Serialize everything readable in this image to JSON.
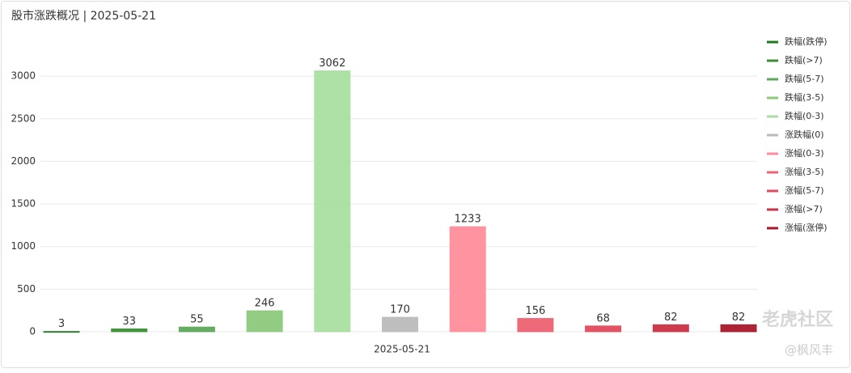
{
  "chart_data": {
    "type": "bar",
    "title": "股市涨跌概况 | 2025-05-21",
    "categories": [
      "2025-05-21"
    ],
    "series": [
      {
        "name": "跌幅(跌停)",
        "color": "#1f7a1f",
        "values": [
          3
        ]
      },
      {
        "name": "跌幅(>7)",
        "color": "#3a8f35",
        "values": [
          33
        ]
      },
      {
        "name": "跌幅(5-7)",
        "color": "#5ea85a",
        "values": [
          55
        ]
      },
      {
        "name": "跌幅(3-5)",
        "color": "#8cc97c",
        "values": [
          246
        ]
      },
      {
        "name": "跌幅(0-3)",
        "color": "#a9dfa0",
        "values": [
          3062
        ]
      },
      {
        "name": "涨跌幅(0)",
        "color": "#bbbbbb",
        "values": [
          170
        ]
      },
      {
        "name": "涨幅(0-3)",
        "color": "#ff8d9b",
        "values": [
          1233
        ]
      },
      {
        "name": "涨幅(3-5)",
        "color": "#ee6272",
        "values": [
          156
        ]
      },
      {
        "name": "涨幅(5-7)",
        "color": "#e04b5c",
        "values": [
          68
        ]
      },
      {
        "name": "涨幅(>7)",
        "color": "#c93243",
        "values": [
          82
        ]
      },
      {
        "name": "涨幅(涨停)",
        "color": "#a8182a",
        "values": [
          82
        ]
      }
    ],
    "ylim": [
      0,
      3400
    ],
    "yticks": [
      0,
      500,
      1000,
      1500,
      2000,
      2500,
      3000
    ],
    "grid": true,
    "legend": "right",
    "watermark": [
      "老虎社区",
      "@枫风丰"
    ]
  }
}
